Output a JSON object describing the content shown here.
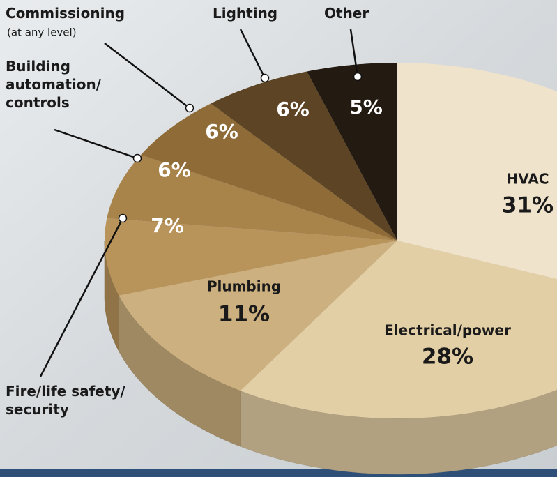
{
  "chart_data": {
    "type": "pie3d",
    "categories": [
      "HVAC",
      "Electrical/power",
      "Plumbing",
      "Fire/life safety/ security",
      "Building automation/ controls",
      "Commissioning",
      "Lighting",
      "Other"
    ],
    "values": [
      31,
      28,
      11,
      7,
      6,
      6,
      6,
      5
    ],
    "value_labels": [
      "31%",
      "28%",
      "11%",
      "7%",
      "6%",
      "6%",
      "6%",
      "5%"
    ],
    "colors": [
      "#efe3cc",
      "#e3cfa6",
      "#ccb07f",
      "#b8945a",
      "#a8844b",
      "#8e6b37",
      "#5d4424",
      "#231a12"
    ],
    "annotations": [
      "(at any level)"
    ]
  }
}
